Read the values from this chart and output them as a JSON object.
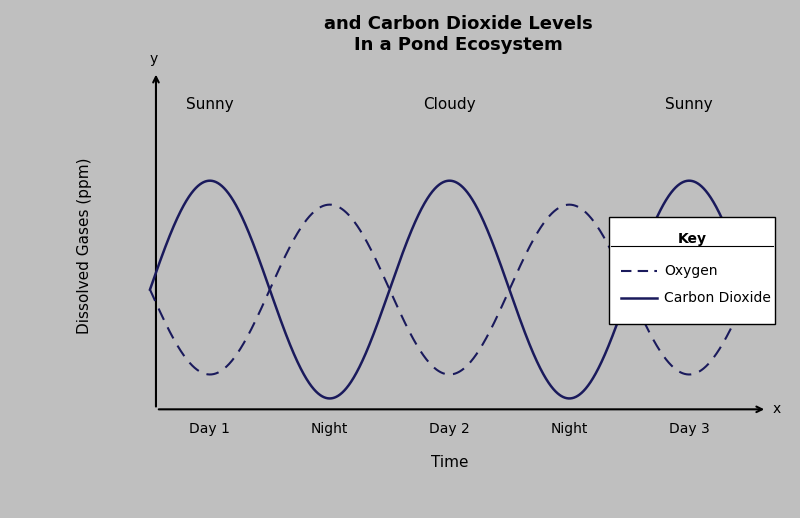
{
  "title_line1": "and Carbon Dioxide Levels",
  "title_line2": "In a Pond Ecosystem",
  "ylabel": "Dissolved Gases (ppm)",
  "xlabel": "Time",
  "x_label_arrow": "x",
  "y_label_arrow": "y",
  "tick_labels": [
    "Day 1",
    "Night",
    "Day 2",
    "Night",
    "Day 3"
  ],
  "condition_labels": [
    "Sunny",
    "Cloudy",
    "Sunny"
  ],
  "bg_color": "#bfbfbf",
  "solid_color": "#1a1a5c",
  "dashed_color": "#1a1a5c",
  "legend_title": "Key",
  "legend_oxygen": "Oxygen",
  "legend_co2": "Carbon Dioxide",
  "title_fontsize": 13,
  "axis_label_fontsize": 11,
  "condition_fontsize": 11,
  "tick_fontsize": 10
}
